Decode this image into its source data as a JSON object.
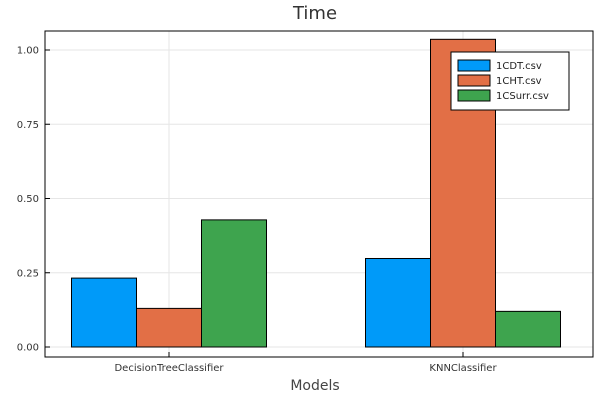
{
  "chart_data": {
    "type": "bar",
    "title": "Time",
    "xlabel": "Models",
    "ylabel": "",
    "categories": [
      "DecisionTreeClassifier",
      "KNNClassifier"
    ],
    "series": [
      {
        "name": "1CDT.csv",
        "values": [
          0.232,
          0.298
        ],
        "color": "#009af9"
      },
      {
        "name": "1CHT.csv",
        "values": [
          0.13,
          1.036
        ],
        "color": "#e26f46"
      },
      {
        "name": "1CSurr.csv",
        "values": [
          0.428,
          0.12
        ],
        "color": "#3ea44e"
      }
    ],
    "ylim": [
      0,
      1.06
    ],
    "yticks": [
      0.0,
      0.25,
      0.5,
      0.75,
      1.0
    ],
    "ytick_labels": [
      "0.00",
      "0.25",
      "0.50",
      "0.75",
      "1.00"
    ],
    "grid": true,
    "legend_position": "top-right"
  }
}
